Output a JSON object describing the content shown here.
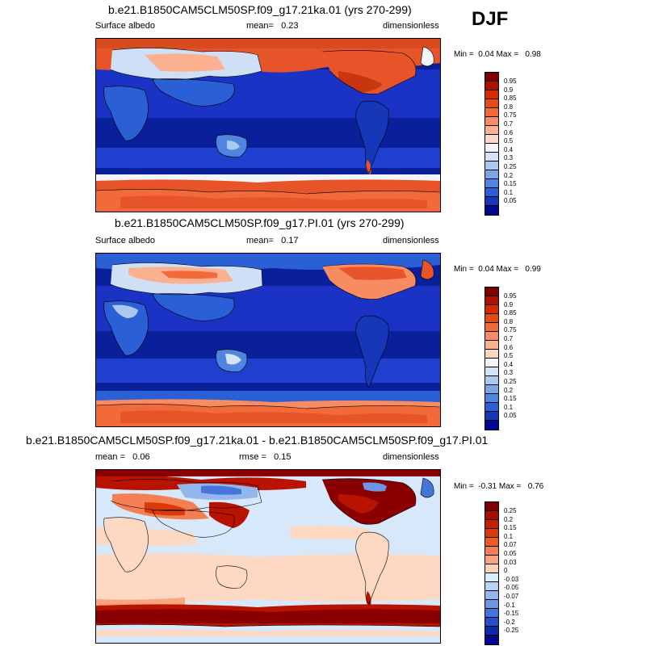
{
  "season": "DJF",
  "panels": [
    {
      "title": "b.e21.B1850CAM5CLM50SP.f09_g17.21ka.01 (yrs 270-299)",
      "left_label": "Surface albedo",
      "mid_label": "mean=",
      "mid_value": "0.23",
      "right_label": "dimensionless",
      "min_label": "Min =",
      "min_value": "0.04",
      "max_label": "Max =",
      "max_value": "0.98",
      "colorbar": {
        "labels": [
          "0.95",
          "0.9",
          "0.85",
          "0.8",
          "0.75",
          "0.7",
          "0.6",
          "0.5",
          "0.4",
          "0.3",
          "0.25",
          "0.2",
          "0.15",
          "0.1",
          "0.05"
        ],
        "colors": [
          "#7f0000",
          "#b00f00",
          "#d62a00",
          "#e84b12",
          "#f26a3a",
          "#f78c62",
          "#fbb090",
          "#fdd7c4",
          "#f2f6fb",
          "#d4e4f7",
          "#aac8f0",
          "#7aa6e8",
          "#4f84e0",
          "#2a5fd6",
          "#1537b8",
          "#000a8f"
        ]
      }
    },
    {
      "title": "b.e21.B1850CAM5CLM50SP.f09_g17.PI.01 (yrs 270-299)",
      "left_label": "Surface albedo",
      "mid_label": "mean=",
      "mid_value": "0.17",
      "right_label": "dimensionless",
      "min_label": "Min =",
      "min_value": "0.04",
      "max_label": "Max =",
      "max_value": "0.99",
      "colorbar": {
        "labels": [
          "0.95",
          "0.9",
          "0.85",
          "0.8",
          "0.75",
          "0.7",
          "0.6",
          "0.5",
          "0.4",
          "0.3",
          "0.25",
          "0.2",
          "0.15",
          "0.1",
          "0.05"
        ],
        "colors": [
          "#7f0000",
          "#b00f00",
          "#d62a00",
          "#e84b12",
          "#f26a3a",
          "#f78c62",
          "#fbb090",
          "#fdd7c4",
          "#f2f6fb",
          "#d4e4f7",
          "#aac8f0",
          "#7aa6e8",
          "#4f84e0",
          "#2a5fd6",
          "#1537b8",
          "#000a8f"
        ]
      }
    },
    {
      "title": "b.e21.B1850CAM5CLM50SP.f09_g17.21ka.01 - b.e21.B1850CAM5CLM50SP.f09_g17.PI.01",
      "left_label": "mean =",
      "left_value": "0.06",
      "mid_label": "rmse =",
      "mid_value": "0.15",
      "right_label": "dimensionless",
      "min_label": "Min =",
      "min_value": "-0.31",
      "max_label": "Max =",
      "max_value": "0.76",
      "colorbar": {
        "labels": [
          "0.25",
          "0.2",
          "0.15",
          "0.1",
          "0.07",
          "0.05",
          "0.03",
          "0",
          "-0.03",
          "-0.05",
          "-0.07",
          "-0.1",
          "-0.15",
          "-0.2",
          "-0.25"
        ],
        "colors": [
          "#7f0000",
          "#a50f00",
          "#c42000",
          "#da3a0a",
          "#ea5b2a",
          "#f37f53",
          "#f9a37f",
          "#fdd0b8",
          "#dcebfa",
          "#b9d3f4",
          "#93b6ec",
          "#6c96e3",
          "#4675d9",
          "#2350c7",
          "#0d2aa8",
          "#000a8f"
        ]
      }
    }
  ],
  "map_colors": {
    "ocean_deep": "#0a1f9a",
    "ocean_mid": "#1f3fcf",
    "ice_red": "#e8542a",
    "ice_dark": "#c8360f",
    "snow_light": "#fbb090",
    "land_pale": "#cfe0f6",
    "diff_bg": "#d8e8fb",
    "diff_warm": "#fdd8c2",
    "diff_red": "#b81200",
    "diff_darkred": "#8a0000"
  }
}
